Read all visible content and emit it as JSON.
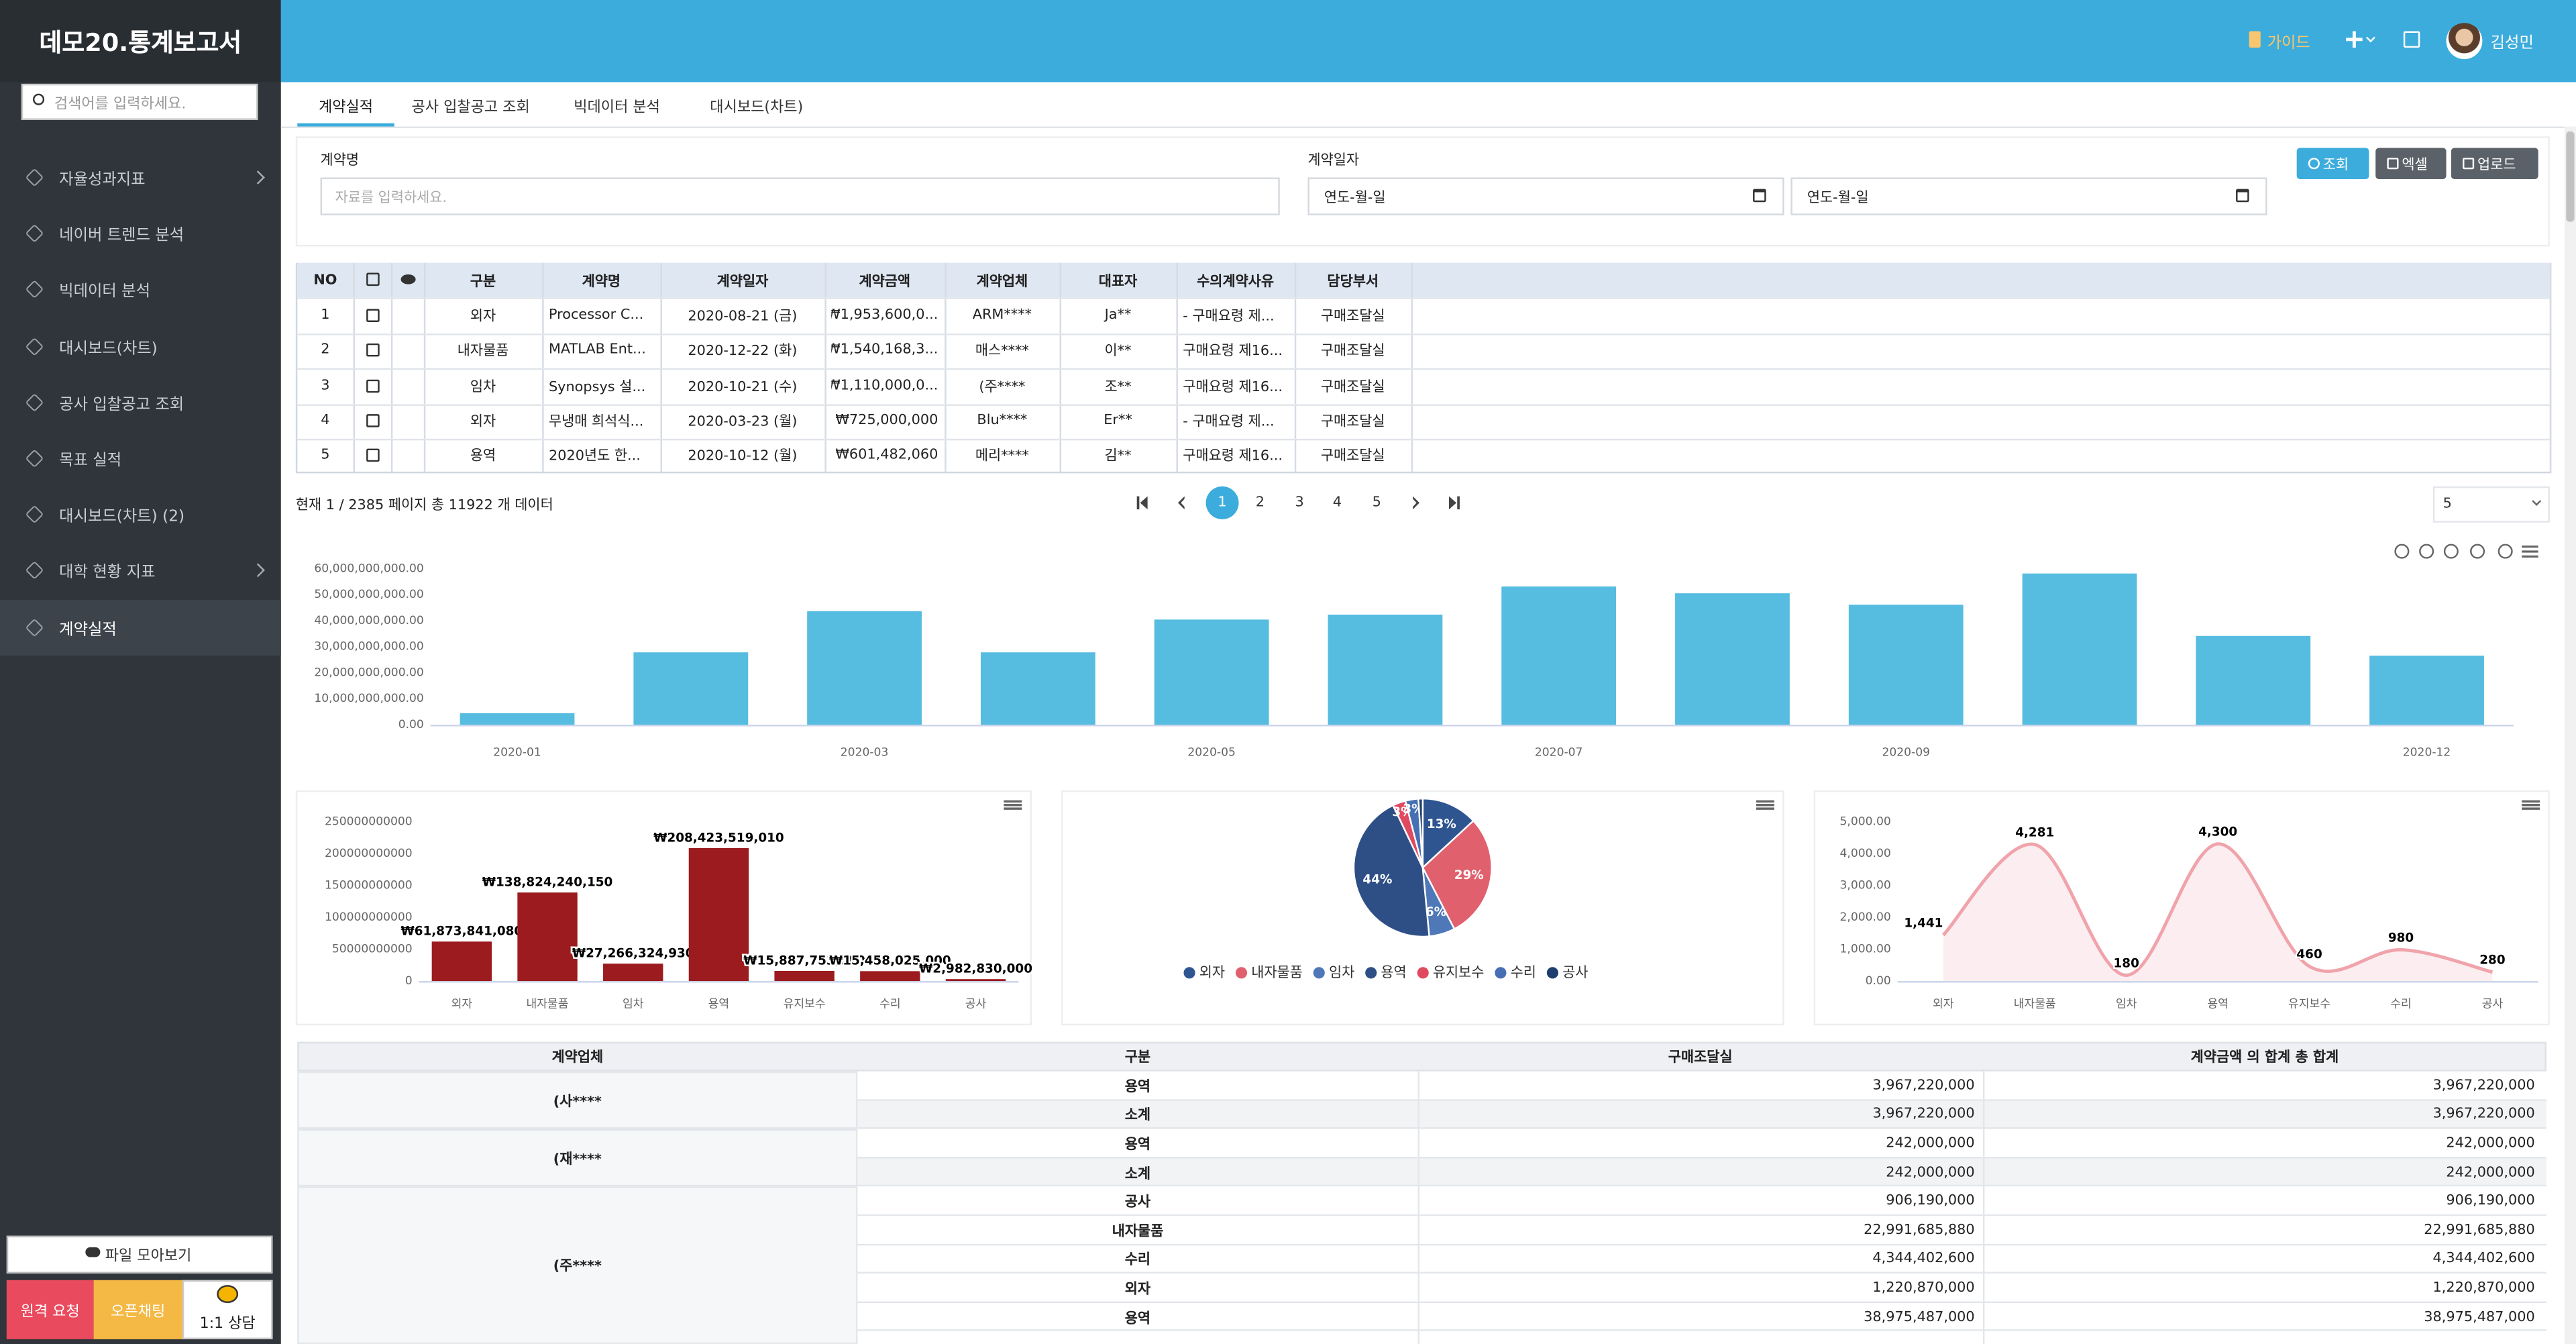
{
  "sidebar": {
    "title": "데모20.통계보고서",
    "search_placeholder": "검색어를 입력하세요.",
    "menu": [
      "자율성과지표",
      "네이버 트렌드 분석",
      "빅데이터 분석",
      "대시보드(차트)",
      "공사 입찰공고 조회",
      "목표 실적",
      "대시보드(차트) (2)",
      "대학 현황 지표",
      "계약실적"
    ],
    "files_button": "파일 모아보기",
    "remote_button": "원격 요청",
    "chat_button": "오픈채팅",
    "consult_button": "1:1 상담"
  },
  "header": {
    "guide": "가이드",
    "user": "김성민"
  },
  "tabs": [
    "계약실적",
    "공사 입찰공고 조회",
    "빅데이터 분석",
    "대시보드(차트)"
  ],
  "filters": {
    "name_label": "계약명",
    "name_placeholder": "자료를 입력하세요.",
    "date_label": "계약일자",
    "date_from": "연도-월-일",
    "date_to": "연도-월-일",
    "search": "조회",
    "excel": "엑셀",
    "upload": "업로드"
  },
  "table": {
    "columns": [
      "NO",
      "구분",
      "계약명",
      "계약일자",
      "계약금액",
      "계약업체",
      "대표자",
      "수의계약사유",
      "담당부서"
    ],
    "rows": [
      [
        1,
        "외자",
        "Processor C...",
        "2020-08-21 (금)",
        "₩1,953,600,0...",
        "ARM****",
        "Ja**",
        "- 구매요령 제...",
        "구매조달실"
      ],
      [
        2,
        "내자물품",
        "MATLAB Ent...",
        "2020-12-22 (화)",
        "₩1,540,168,3...",
        "매스****",
        "이**",
        "구매요령 제16...",
        "구매조달실"
      ],
      [
        3,
        "임차",
        "Synopsys 설...",
        "2020-10-21 (수)",
        "₩1,110,000,0...",
        "(주****",
        "조**",
        "구매요령 제16...",
        "구매조달실"
      ],
      [
        4,
        "외자",
        "무냉매 희석식...",
        "2020-03-23 (월)",
        "₩725,000,000",
        "Blu****",
        "Er**",
        "- 구매요령 제...",
        "구매조달실"
      ],
      [
        5,
        "용역",
        "2020년도 한...",
        "2020-10-12 (월)",
        "₩601,482,060",
        "메리****",
        "김**",
        "구매요령 제16...",
        "구매조달실"
      ]
    ]
  },
  "pagination": {
    "info": "현재 1 / 2385 페이지 총 11922 개 데이터",
    "pages": [
      1,
      2,
      3,
      4,
      5
    ],
    "page_size": 5
  },
  "chart_data": [
    {
      "type": "bar",
      "color": "#56bce0",
      "grid": false,
      "categories": [
        "2020-01",
        null,
        "2020-03",
        null,
        "2020-05",
        null,
        "2020-07",
        null,
        "2020-09",
        null,
        null,
        "2020-12"
      ],
      "values": [
        4400000000,
        27800000000,
        43600000000,
        27800000000,
        40400000000,
        42300000000,
        53100000000,
        50500000000,
        46100000000,
        58100000000,
        34100000000,
        26500000000
      ],
      "ylim": [
        0,
        60000000000
      ],
      "yticks": [
        {
          "value": 0,
          "label": "0.00"
        },
        {
          "value": 10000000000,
          "label": "10,000,000,000.00"
        },
        {
          "value": 20000000000,
          "label": "20,000,000,000.00"
        },
        {
          "value": 30000000000,
          "label": "30,000,000,000.00"
        },
        {
          "value": 40000000000,
          "label": "40,000,000,000.00"
        },
        {
          "value": 50000000000,
          "label": "50,000,000,000.00"
        },
        {
          "value": 60000000000,
          "label": "60,000,000,000.00"
        }
      ]
    },
    {
      "type": "bar",
      "color": "#9b1b1f",
      "grid": false,
      "categories": [
        "외자",
        "내자물품",
        "임차",
        "용역",
        "유지보수",
        "수리",
        "공사"
      ],
      "values": [
        61873841080,
        138824240150,
        27266324930,
        208423519010,
        15887753000,
        15458025000,
        2982830000
      ],
      "value_labels": [
        "₩61,873,841,080",
        "₩138,824,240,150",
        "₩27,266,324,930",
        "₩208,423,519,010",
        "₩15,887,753,000",
        "₩15,458,025,000",
        "₩2,982,830,000"
      ],
      "ylim": [
        0,
        250000000000
      ],
      "yticks": [
        0,
        50000000000,
        100000000000,
        150000000000,
        200000000000,
        250000000000
      ]
    },
    {
      "type": "pie",
      "legend": "bottom",
      "categories": [
        "외자",
        "내자물품",
        "임차",
        "용역",
        "유지보수",
        "수리",
        "공사"
      ],
      "values": [
        13,
        29,
        6,
        44,
        3,
        3,
        1
      ],
      "value_labels": [
        "13%",
        "29%",
        "6%",
        "44%",
        "3%",
        "3%",
        null
      ],
      "colors": [
        "#2f5591",
        "#e0606d",
        "#4f78b8",
        "#2e4f86",
        "#e04a60",
        "#4670b2",
        "#1f3d6e"
      ]
    },
    {
      "type": "line",
      "color": "#f0a3ab",
      "grid": false,
      "categories": [
        "외자",
        "내자물품",
        "임차",
        "용역",
        "유지보수",
        "수리",
        "공사"
      ],
      "values": [
        1441,
        4281,
        180,
        4300,
        460,
        980,
        280
      ],
      "value_labels": [
        "1,441",
        "4,281",
        "180",
        "4,300",
        "460",
        "980",
        "280"
      ],
      "ylim": [
        0,
        5000
      ],
      "yticks": [
        {
          "value": 0,
          "label": "0.00"
        },
        {
          "value": 1000,
          "label": "1,000.00"
        },
        {
          "value": 2000,
          "label": "2,000.00"
        },
        {
          "value": 3000,
          "label": "3,000.00"
        },
        {
          "value": 4000,
          "label": "4,000.00"
        },
        {
          "value": 5000,
          "label": "5,000.00"
        }
      ]
    }
  ],
  "pivot": {
    "columns": [
      "계약업체",
      "구분",
      "구매조달실",
      "계약금액 의 합계 총 합계"
    ],
    "groups": [
      {
        "company": "(사****",
        "rows": [
          [
            "용역",
            "3,967,220,000",
            "3,967,220,000"
          ],
          [
            "소계",
            "3,967,220,000",
            "3,967,220,000"
          ]
        ]
      },
      {
        "company": "(재****",
        "rows": [
          [
            "용역",
            "242,000,000",
            "242,000,000"
          ],
          [
            "소계",
            "242,000,000",
            "242,000,000"
          ]
        ]
      },
      {
        "company": "(주****",
        "rows": [
          [
            "공사",
            "906,190,000",
            "906,190,000"
          ],
          [
            "내자물품",
            "22,991,685,880",
            "22,991,685,880"
          ],
          [
            "수리",
            "4,344,402,600",
            "4,344,402,600"
          ],
          [
            "외자",
            "1,220,870,000",
            "1,220,870,000"
          ],
          [
            "용역",
            "38,975,487,000",
            "38,975,487,000"
          ]
        ]
      }
    ]
  }
}
